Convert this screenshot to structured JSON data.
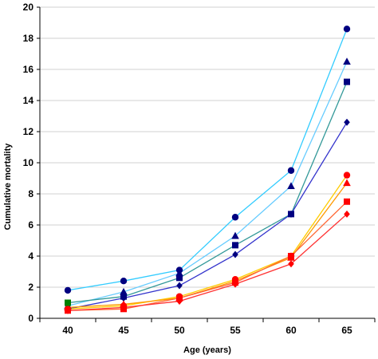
{
  "chart_data": {
    "type": "line",
    "xlabel": "Age (years)",
    "ylabel": "Cumulative mortality",
    "x": [
      40,
      45,
      50,
      55,
      60,
      65
    ],
    "ylim": [
      0,
      20
    ],
    "yticks": [
      0,
      2,
      4,
      6,
      8,
      10,
      12,
      14,
      16,
      18,
      20
    ],
    "grid": "horizontal",
    "legend": "none",
    "series": [
      {
        "values": [
          1.8,
          2.4,
          3.1,
          6.5,
          9.5,
          18.6
        ],
        "color": "#33CCFF",
        "marker": "circle",
        "markerColor": "#000080"
      },
      {
        "values": [
          0.8,
          1.7,
          2.9,
          5.3,
          8.5,
          16.5
        ],
        "color": "#66CCFF",
        "marker": "triangle",
        "markerColor": "#000080"
      },
      {
        "values": [
          1.0,
          1.4,
          2.6,
          4.7,
          6.7,
          15.2
        ],
        "color": "#339999",
        "marker": "square",
        "markerColor": "#000080"
      },
      {
        "values": [
          0.6,
          1.3,
          2.1,
          4.1,
          6.7,
          12.6
        ],
        "color": "#3333CC",
        "marker": "diamond",
        "markerColor": "#000080"
      },
      {
        "values": [
          0.6,
          0.8,
          1.4,
          2.5,
          4.0,
          9.2
        ],
        "color": "#FFCC00",
        "marker": "circle",
        "markerColor": "#FF0000"
      },
      {
        "values": [
          0.7,
          0.9,
          1.3,
          2.4,
          3.9,
          8.7
        ],
        "color": "#FF9900",
        "marker": "triangle",
        "markerColor": "#FF0000"
      },
      {
        "values": [
          0.5,
          0.6,
          1.3,
          2.3,
          4.0,
          7.5
        ],
        "color": "#FF6633",
        "marker": "square",
        "markerColor": "#FF0000"
      },
      {
        "values": [
          0.5,
          0.7,
          1.1,
          2.2,
          3.5,
          6.7
        ],
        "color": "#FF3333",
        "marker": "diamond",
        "markerColor": "#FF0000"
      }
    ],
    "extra_markers": [
      {
        "x": 40,
        "y": 1.0,
        "marker": "square",
        "color": "#008000"
      }
    ]
  }
}
